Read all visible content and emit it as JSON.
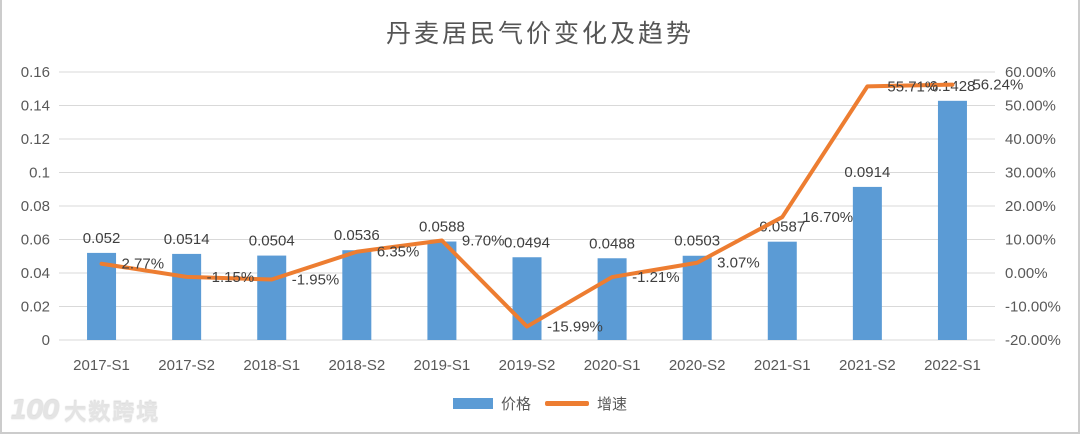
{
  "page": {
    "title": "丹麦居民气价变化及趋势"
  },
  "watermark": {
    "logo": "100",
    "text": "大数跨境"
  },
  "legend": {
    "items": [
      {
        "label": "价格",
        "type": "bar",
        "color": "#5B9BD5"
      },
      {
        "label": "增速",
        "type": "line",
        "color": "#ED7D31"
      }
    ]
  },
  "chart_data": {
    "type": "bar+line combo",
    "title": "丹麦居民气价变化及趋势",
    "categories": [
      "2017-S1",
      "2017-S2",
      "2018-S1",
      "2018-S2",
      "2019-S1",
      "2019-S2",
      "2020-S1",
      "2020-S2",
      "2021-S1",
      "2021-S2",
      "2022-S1"
    ],
    "series": [
      {
        "name": "价格",
        "type": "bar",
        "axis": "left",
        "color": "#5B9BD5",
        "values": [
          0.052,
          0.0514,
          0.0504,
          0.0536,
          0.0588,
          0.0494,
          0.0488,
          0.0503,
          0.0587,
          0.0914,
          0.1428
        ],
        "labels": [
          "0.052",
          "0.0514",
          "0.0504",
          "0.0536",
          "0.0588",
          "0.0494",
          "0.0488",
          "0.0503",
          "0.0587",
          "0.0914",
          "0.1428"
        ]
      },
      {
        "name": "增速",
        "type": "line",
        "axis": "right",
        "color": "#ED7D31",
        "values": [
          2.77,
          -1.15,
          -1.95,
          6.35,
          9.7,
          -15.99,
          -1.21,
          3.07,
          16.7,
          55.71,
          56.24
        ],
        "labels": [
          "2.77%",
          "-1.15%",
          "-1.95%",
          "6.35%",
          "9.70%",
          "-15.99%",
          "-1.21%",
          "3.07%",
          "16.70%",
          "55.71%",
          "56.24%"
        ]
      }
    ],
    "left_axis": {
      "min": 0,
      "max": 0.16,
      "step": 0.02,
      "ticks": [
        "0",
        "0.02",
        "0.04",
        "0.06",
        "0.08",
        "0.1",
        "0.12",
        "0.14",
        "0.16"
      ]
    },
    "right_axis": {
      "min": -20,
      "max": 60,
      "step": 10,
      "ticks": [
        "-20.00%",
        "-10.00%",
        "0.00%",
        "10.00%",
        "20.00%",
        "30.00%",
        "40.00%",
        "50.00%",
        "60.00%"
      ]
    },
    "grid": true,
    "grid_color": "#D9D9D9",
    "axis_label_color": "#595959",
    "data_label_color": "#3f3f3f",
    "legend_position": "bottom"
  }
}
